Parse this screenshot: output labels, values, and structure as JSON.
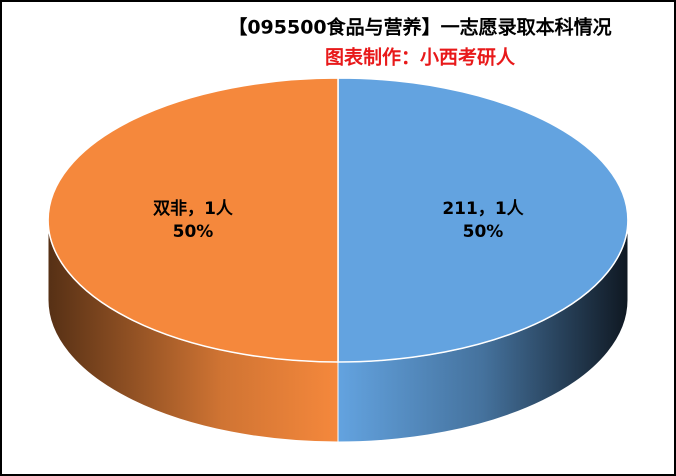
{
  "chart_data": {
    "type": "pie3d",
    "title": "【095500食品与营养】一志愿录取本科情况",
    "subtitle": "图表制作：小西考研人",
    "categories": [
      "211",
      "双非"
    ],
    "values": [
      1,
      1
    ],
    "value_labels": [
      "1人",
      "1人"
    ],
    "label_separator": "，",
    "percents": [
      50,
      50
    ],
    "percent_labels": [
      "50%",
      "50%"
    ],
    "colors": [
      "#63a3e0",
      "#f5883c"
    ]
  }
}
